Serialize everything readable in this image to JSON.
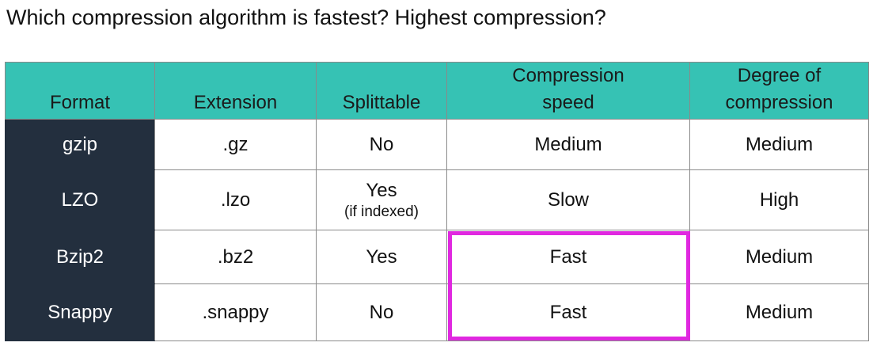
{
  "title": "Which compression algorithm is fastest?  Highest compression?",
  "table": {
    "headers": {
      "format": "Format",
      "extension": "Extension",
      "splittable": "Splittable",
      "speed_line1": "Compression",
      "speed_line2": "speed",
      "degree_line1": "Degree of",
      "degree_line2": "compression"
    },
    "rows": [
      {
        "format": "gzip",
        "extension": ".gz",
        "splittable": "No",
        "splittable_note": "",
        "speed": "Medium",
        "degree": "Medium"
      },
      {
        "format": "LZO",
        "extension": ".lzo",
        "splittable": "Yes",
        "splittable_note": "(if indexed)",
        "speed": "Slow",
        "degree": "High"
      },
      {
        "format": "Bzip2",
        "extension": ".bz2",
        "splittable": "Yes",
        "splittable_note": "",
        "speed": "Fast",
        "degree": "Medium"
      },
      {
        "format": "Snappy",
        "extension": ".snappy",
        "splittable": "No",
        "splittable_note": "",
        "speed": "Fast",
        "degree": "Medium"
      }
    ]
  },
  "colors": {
    "header_bg": "#36c2b4",
    "format_col_bg": "#232f3e",
    "highlight_border": "#e028e0"
  }
}
